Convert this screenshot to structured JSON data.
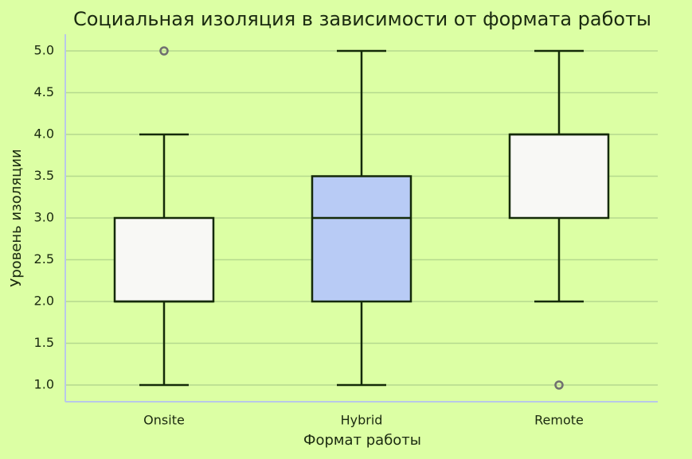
{
  "chart_data": {
    "type": "box",
    "title": "Социальная изоляция в зависимости от формата работы",
    "xlabel": "Формат работы",
    "ylabel": "Уровень изоляции",
    "categories": [
      "Onsite",
      "Hybrid",
      "Remote"
    ],
    "colors": [
      "#f8f8f5",
      "#b8cbf5",
      "#f8f8f5"
    ],
    "boxes": [
      {
        "min": 1,
        "q1": 2,
        "median": 2,
        "q3": 3,
        "max": 4,
        "outliers": [
          5
        ]
      },
      {
        "min": 1,
        "q1": 2,
        "median": 3,
        "q3": 3.5,
        "max": 5,
        "outliers": []
      },
      {
        "min": 2,
        "q1": 3,
        "median": 4,
        "q3": 4,
        "max": 5,
        "outliers": [
          1
        ]
      }
    ],
    "ylim": [
      0.8,
      5.2
    ],
    "yticks": [
      {
        "value": 1,
        "label": "1.0"
      },
      {
        "value": 1.5,
        "label": "1.5"
      },
      {
        "value": 2,
        "label": "2.0"
      },
      {
        "value": 2.5,
        "label": "2.5"
      },
      {
        "value": 3,
        "label": "3.0"
      },
      {
        "value": 3.5,
        "label": "3.5"
      },
      {
        "value": 4,
        "label": "4.0"
      },
      {
        "value": 4.5,
        "label": "4.5"
      },
      {
        "value": 5,
        "label": "5.0"
      }
    ],
    "grid": true
  }
}
